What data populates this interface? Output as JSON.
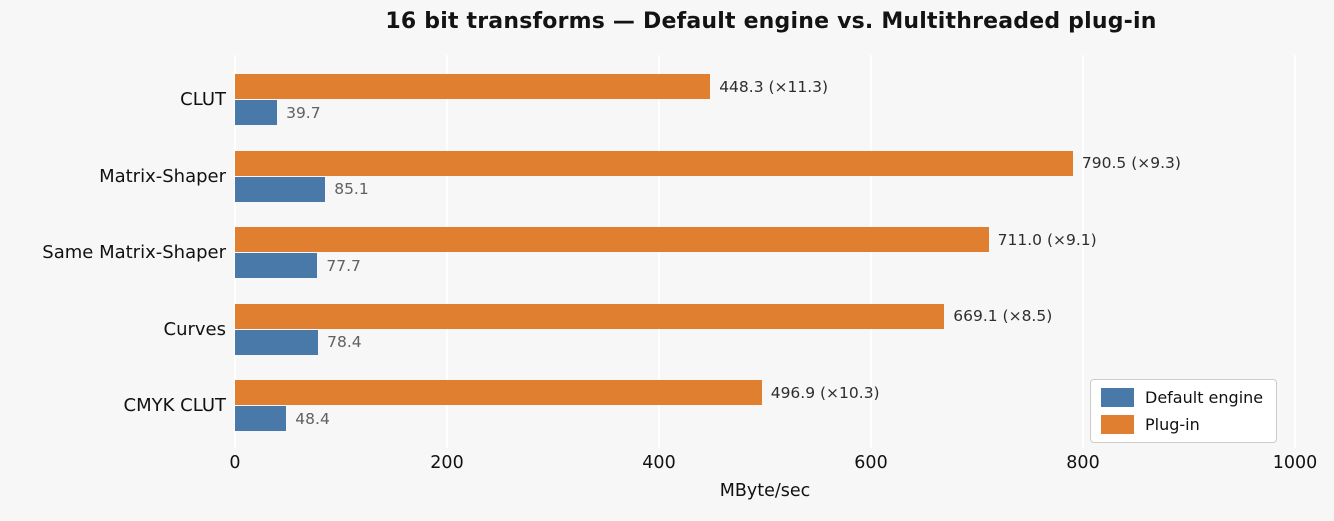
{
  "chart_data": {
    "type": "bar",
    "orientation": "horizontal",
    "title": "16 bit transforms — Default engine vs. Multithreaded plug-in",
    "categories": [
      "CLUT",
      "Matrix-Shaper",
      "Same Matrix-Shaper",
      "Curves",
      "CMYK CLUT"
    ],
    "series": [
      {
        "name": "Default engine",
        "color": "#4879a9",
        "values": [
          39.7,
          85.1,
          77.7,
          78.4,
          48.4
        ],
        "labels": [
          "39.7",
          "85.1",
          "77.7",
          "78.4",
          "48.4"
        ]
      },
      {
        "name": "Plug-in",
        "color": "#e07f30",
        "values": [
          448.3,
          790.5,
          711.0,
          669.1,
          496.9
        ],
        "labels": [
          "448.3 (×11.3)",
          "790.5 (×9.3)",
          "711.0 (×9.1)",
          "669.1 (×8.5)",
          "496.9 (×10.3)"
        ]
      }
    ],
    "xlabel": "MByte/sec",
    "xlim": [
      0,
      1000
    ],
    "xticks": [
      "0",
      "200",
      "400",
      "600",
      "800",
      "1000"
    ],
    "grid": true,
    "gridline_color": "#ffffff",
    "background_color": "#f7f7f7",
    "legend_position": "lower right"
  }
}
